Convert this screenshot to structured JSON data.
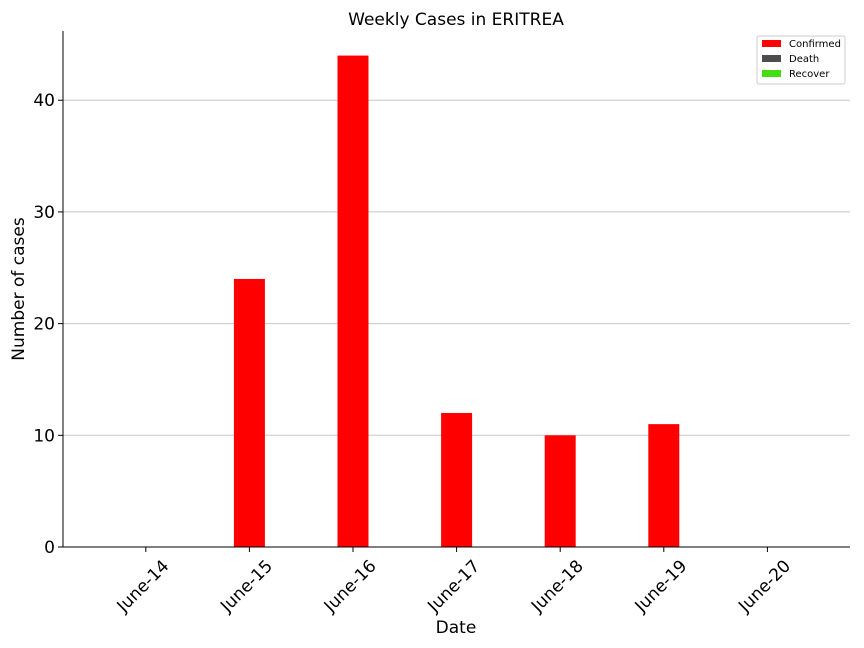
{
  "chart_data": {
    "type": "bar",
    "title": "Weekly Cases in ERITREA",
    "xlabel": "Date",
    "ylabel": "Number of cases",
    "categories": [
      "June-14",
      "June-15",
      "June-16",
      "June-17",
      "June-18",
      "June-19",
      "June-20"
    ],
    "series": [
      {
        "name": "Confirmed",
        "color": "#ff0000",
        "values": [
          0,
          24,
          44,
          12,
          10,
          11,
          0
        ]
      },
      {
        "name": "Death",
        "color": "#4d4d4d",
        "values": [
          0,
          0,
          0,
          0,
          0,
          0,
          0
        ]
      },
      {
        "name": "Recover",
        "color": "#44dd11",
        "values": [
          0,
          0,
          0,
          0,
          0,
          0,
          0
        ]
      }
    ],
    "ylim": [
      0,
      46.2
    ],
    "yticks": [
      0,
      10,
      20,
      30,
      40
    ],
    "grid": "horizontal",
    "legend_position": "top-right"
  }
}
